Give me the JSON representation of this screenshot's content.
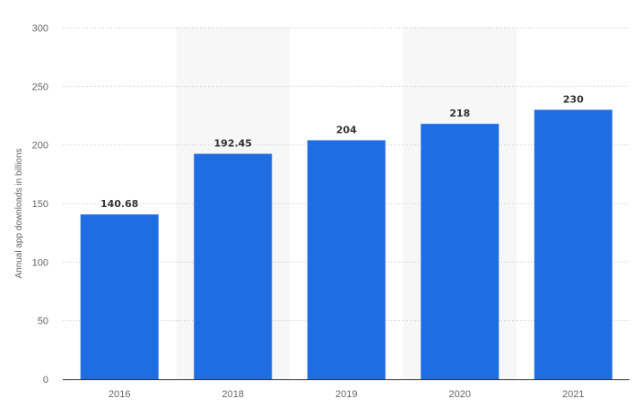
{
  "chart_data": {
    "type": "bar",
    "categories": [
      "2016",
      "2018",
      "2019",
      "2020",
      "2021"
    ],
    "values": [
      140.68,
      192.45,
      204,
      218,
      230
    ],
    "value_labels": [
      "140.68",
      "192.45",
      "204",
      "218",
      "230"
    ],
    "title": "",
    "xlabel": "",
    "ylabel": "Annual app downloads in billions",
    "ylim": [
      0,
      300
    ],
    "yticks": [
      0,
      50,
      100,
      150,
      200,
      250,
      300
    ],
    "grid": true,
    "bar_color": "#1f6de3",
    "shaded_band_color": "#f7f7f7",
    "shaded_categories": [
      "2018",
      "2020"
    ]
  }
}
